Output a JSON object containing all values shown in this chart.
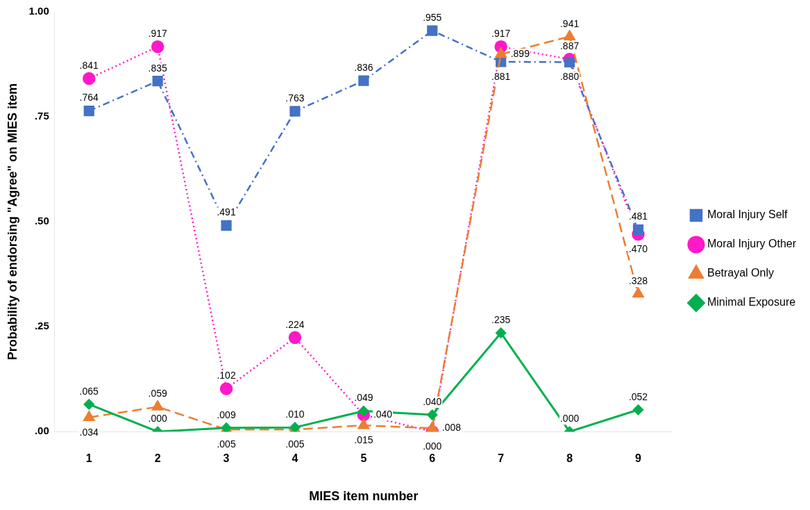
{
  "chart_data": {
    "type": "line",
    "xlabel": "MIES item number",
    "ylabel": "Probability of endorsing \"Agree\" on MIES item",
    "categories": [
      "1",
      "2",
      "3",
      "4",
      "5",
      "6",
      "7",
      "8",
      "9"
    ],
    "ylim": [
      0,
      1
    ],
    "yticks": [
      {
        "value": 0,
        "label": ".00"
      },
      {
        "value": 0.25,
        "label": ".25"
      },
      {
        "value": 0.5,
        "label": ".50"
      },
      {
        "value": 0.75,
        "label": ".75"
      },
      {
        "value": 1,
        "label": "1.00"
      }
    ],
    "grid": false,
    "legend": "right",
    "series": [
      {
        "name": "Moral Injury Self",
        "color": "#4472c4",
        "marker": "square",
        "line_style": "dashdot",
        "values": [
          0.764,
          0.835,
          0.491,
          0.763,
          0.836,
          0.955,
          0.881,
          0.88,
          0.481
        ],
        "value_labels": [
          ".764",
          ".835",
          ".491",
          ".763",
          ".836",
          ".955",
          ".881",
          ".880",
          ".481"
        ]
      },
      {
        "name": "Moral Injury Other",
        "color": "#ff19c8",
        "marker": "circle",
        "line_style": "dotted",
        "values": [
          0.841,
          0.917,
          0.102,
          0.224,
          0.04,
          0.0,
          0.917,
          0.887,
          0.47
        ],
        "value_labels": [
          ".841",
          ".917",
          ".102",
          ".224",
          ".040",
          ".000",
          ".917",
          ".887",
          ".470"
        ]
      },
      {
        "name": "Betrayal Only",
        "color": "#ed7d31",
        "marker": "triangle",
        "line_style": "dashed",
        "values": [
          0.034,
          0.059,
          0.005,
          0.005,
          0.015,
          0.008,
          0.899,
          0.941,
          0.328
        ],
        "value_labels": [
          ".034",
          ".059",
          ".005",
          ".005",
          ".015",
          ".008",
          ".899",
          ".941",
          ".328"
        ]
      },
      {
        "name": "Minimal Exposure",
        "color": "#00b050",
        "marker": "diamond",
        "line_style": "solid",
        "values": [
          0.065,
          0.0,
          0.009,
          0.01,
          0.049,
          0.04,
          0.235,
          0.0,
          0.052
        ],
        "value_labels": [
          ".065",
          ".000",
          ".009",
          ".010",
          ".049",
          ".040",
          ".235",
          ".000",
          ".052"
        ]
      }
    ]
  }
}
